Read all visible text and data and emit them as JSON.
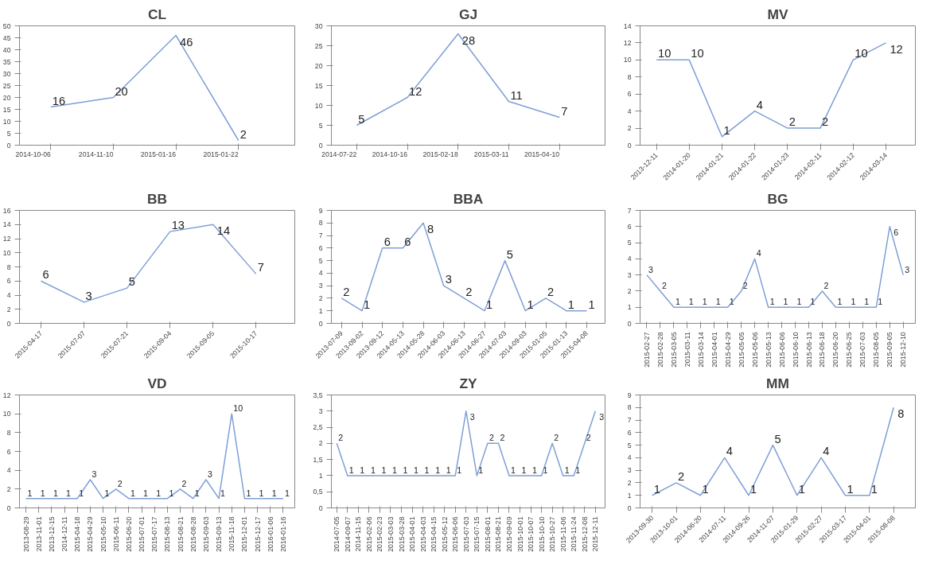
{
  "chart_data": [
    {
      "type": "line",
      "title": "CL",
      "categories": [
        "2014-10-06",
        "2014-11-10",
        "2015-01-16",
        "2015-01-22"
      ],
      "values": [
        16,
        20,
        46,
        2
      ],
      "color": "#7f9fd6",
      "ylim": [
        0,
        50
      ],
      "yticks": [
        0,
        5,
        10,
        15,
        20,
        25,
        30,
        35,
        40,
        45,
        50
      ],
      "data_labels": true
    },
    {
      "type": "line",
      "title": "GJ",
      "categories": [
        "2014-07-22",
        "2014-10-16",
        "2015-02-18",
        "2015-03-11",
        "2015-04-10"
      ],
      "values": [
        5,
        12,
        28,
        11,
        7
      ],
      "color": "#7f9fd6",
      "ylim": [
        0,
        30
      ],
      "yticks": [
        0,
        5,
        10,
        15,
        20,
        25,
        30
      ],
      "data_labels": true
    },
    {
      "type": "line",
      "title": "MV",
      "categories": [
        "2013-12-11",
        "2014-01-20",
        "2014-01-21",
        "2014-01-22",
        "2014-01-23",
        "2014-02-11",
        "2014-02-12",
        "2014-03-14"
      ],
      "values": [
        10,
        10,
        1,
        4,
        2,
        2,
        10,
        12
      ],
      "color": "#7f9fd6",
      "ylim": [
        0,
        14
      ],
      "yticks": [
        0,
        2,
        4,
        6,
        8,
        10,
        12,
        14
      ],
      "data_labels": true
    },
    {
      "type": "line",
      "title": "BB",
      "categories": [
        "2015-04-17",
        "2015-07-07",
        "2015-07-21",
        "2015-09-04",
        "2015-09-05",
        "2015-10-17"
      ],
      "values": [
        6,
        3,
        5,
        13,
        14,
        7
      ],
      "color": "#7f9fd6",
      "ylim": [
        0,
        16
      ],
      "yticks": [
        0,
        2,
        4,
        6,
        8,
        10,
        12,
        14,
        16
      ],
      "data_labels": true
    },
    {
      "type": "line",
      "title": "BBA",
      "categories": [
        "2013-07-09",
        "2013-09-02",
        "2013-09-12",
        "2014-05-13",
        "2014-05-28",
        "2014-06-03",
        "2014-06-13",
        "2014-06-27",
        "2014-07-03",
        "2014-09-03",
        "2015-01-05",
        "2015-01-13",
        "2015-04-08"
      ],
      "values": [
        2,
        1,
        6,
        6,
        8,
        3,
        2,
        1,
        5,
        1,
        2,
        1,
        1
      ],
      "color": "#7f9fd6",
      "ylim": [
        0,
        9
      ],
      "yticks": [
        0,
        1,
        2,
        3,
        4,
        5,
        6,
        7,
        8,
        9
      ],
      "data_labels": true
    },
    {
      "type": "line",
      "title": "BG",
      "categories": [
        "2015-02-27",
        "2015-02-28",
        "2015-03-05",
        "2015-03-11",
        "2015-03-14",
        "2015-04-01",
        "2015-04-29",
        "2015-05-05",
        "2015-05-06",
        "2015-05-13",
        "2015-06-06",
        "2015-06-10",
        "2015-06-13",
        "2015-06-18",
        "2015-06-20",
        "2015-06-25",
        "2015-07-03",
        "2015-08-05",
        "2015-09-05",
        "2015-12-10"
      ],
      "values": [
        3,
        2,
        1,
        1,
        1,
        1,
        1,
        2,
        4,
        1,
        1,
        1,
        1,
        2,
        1,
        1,
        1,
        1,
        6,
        3
      ],
      "color": "#7f9fd6",
      "ylim": [
        0,
        7
      ],
      "yticks": [
        0,
        1,
        2,
        3,
        4,
        5,
        6,
        7
      ],
      "data_labels": true
    },
    {
      "type": "line",
      "title": "VD",
      "categories": [
        "2013-08-29",
        "2013-11-01",
        "2013-12-15",
        "2014-12-11",
        "2015-04-18",
        "2015-04-29",
        "2015-05-10",
        "2015-06-11",
        "2015-06-20",
        "2015-07-01",
        "2015-07-17",
        "2015-08-13",
        "2015-08-21",
        "2015-08-28",
        "2015-09-03",
        "2015-09-13",
        "2015-11-18",
        "2015-12-01",
        "2015-12-17",
        "2016-01-06",
        "2016-01-16"
      ],
      "values": [
        1,
        1,
        1,
        1,
        1,
        3,
        1,
        2,
        1,
        1,
        1,
        1,
        2,
        1,
        3,
        1,
        10,
        1,
        1,
        1,
        1
      ],
      "color": "#7f9fd6",
      "ylim": [
        0,
        12
      ],
      "yticks": [
        0,
        2,
        4,
        6,
        8,
        10,
        12
      ],
      "data_labels": true
    },
    {
      "type": "line",
      "title": "ZY",
      "categories": [
        "2014-07-05",
        "2014-09-07",
        "2014-11-15",
        "2015-02-06",
        "2015-02-23",
        "2015-03-03",
        "2015-03-28",
        "2015-04-01",
        "2015-04-03",
        "2015-04-15",
        "2015-05-12",
        "2015-06-06",
        "2015-07-03",
        "2015-07-15",
        "2015-08-01",
        "2015-08-21",
        "2015-09-09",
        "2015-10-01",
        "2015-10-07",
        "2015-10-10",
        "2015-10-27",
        "2015-11-06",
        "2015-11-24",
        "2015-12-08",
        "2015-12-11"
      ],
      "values": [
        2,
        1,
        1,
        1,
        1,
        1,
        1,
        1,
        1,
        1,
        1,
        1,
        3,
        1,
        2,
        2,
        1,
        1,
        1,
        1,
        2,
        1,
        1,
        2,
        3
      ],
      "color": "#7f9fd6",
      "ylim": [
        0,
        3.5
      ],
      "yticks": [
        0,
        {
          "value": 0.5,
          "label": "0,5"
        },
        1,
        {
          "value": 1.5,
          "label": "1,5"
        },
        2,
        {
          "value": 2.5,
          "label": "2,5"
        },
        3,
        {
          "value": 3.5,
          "label": "3,5"
        }
      ],
      "data_labels": true
    },
    {
      "type": "line",
      "title": "MM",
      "categories": [
        "2013-09-30",
        "2013-10-01",
        "2014-06-20",
        "2014-07-11",
        "2014-09-26",
        "2014-11-07",
        "2015-01-29",
        "2015-02-27",
        "2015-03-17",
        "2015-04-01",
        "2015-08-08"
      ],
      "values": [
        1,
        2,
        1,
        4,
        1,
        5,
        1,
        4,
        1,
        1,
        8
      ],
      "color": "#7f9fd6",
      "ylim": [
        0,
        9
      ],
      "yticks": [
        0,
        1,
        2,
        3,
        4,
        5,
        6,
        7,
        8,
        9
      ],
      "data_labels": true
    }
  ]
}
